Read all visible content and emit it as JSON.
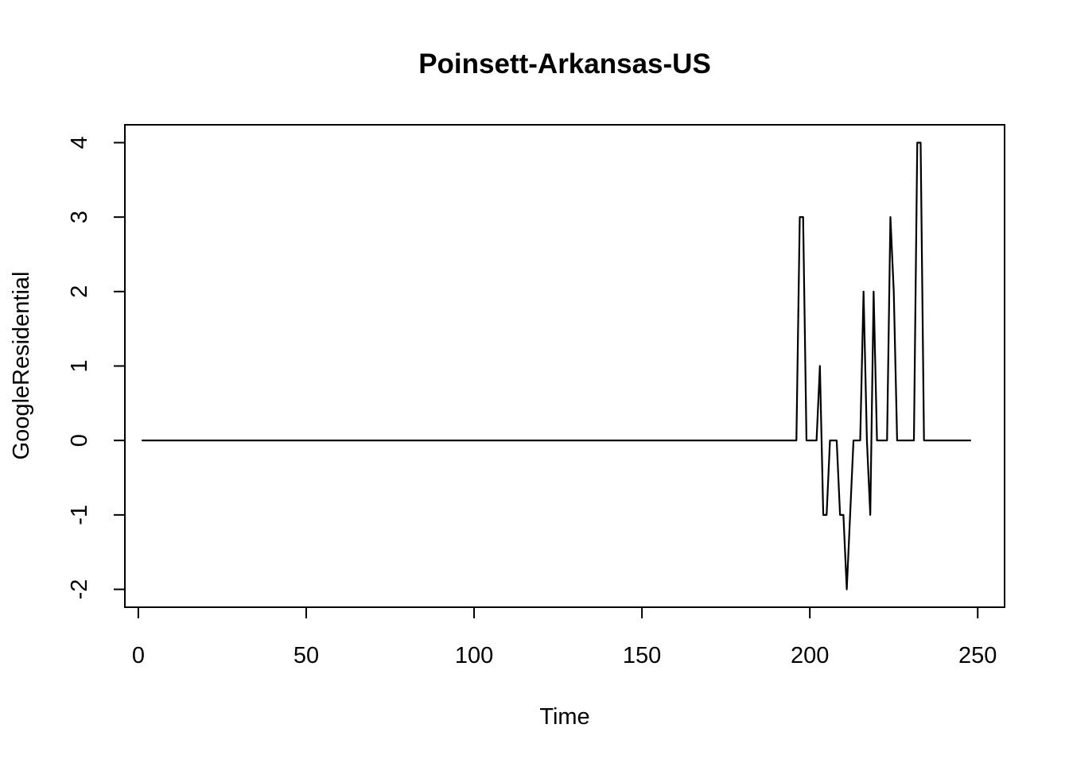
{
  "chart_data": {
    "type": "line",
    "title": "Poinsett-Arkansas-US",
    "xlabel": "Time",
    "ylabel": "GoogleResidential",
    "xlim": [
      -4,
      258
    ],
    "ylim": [
      -2.24,
      4.24
    ],
    "x_ticks": [
      0,
      50,
      100,
      150,
      200,
      250
    ],
    "y_ticks": [
      -2,
      -1,
      0,
      1,
      2,
      3,
      4
    ],
    "grid": false,
    "series": [
      {
        "x_start": 1,
        "x_end": 248,
        "baseline": 0,
        "points": [
          [
            196,
            0
          ],
          [
            197,
            3
          ],
          [
            198,
            3
          ],
          [
            199,
            0
          ],
          [
            200,
            0
          ],
          [
            201,
            0
          ],
          [
            202,
            0
          ],
          [
            203,
            1
          ],
          [
            204,
            -1
          ],
          [
            205,
            -1
          ],
          [
            206,
            0
          ],
          [
            207,
            0
          ],
          [
            208,
            0
          ],
          [
            209,
            -1
          ],
          [
            210,
            -1
          ],
          [
            211,
            -2
          ],
          [
            212,
            -1
          ],
          [
            213,
            0
          ],
          [
            214,
            0
          ],
          [
            215,
            0
          ],
          [
            216,
            2
          ],
          [
            217,
            0
          ],
          [
            218,
            -1
          ],
          [
            219,
            2
          ],
          [
            220,
            0
          ],
          [
            221,
            0
          ],
          [
            222,
            0
          ],
          [
            223,
            0
          ],
          [
            224,
            3
          ],
          [
            225,
            2
          ],
          [
            226,
            0
          ],
          [
            227,
            0
          ],
          [
            228,
            0
          ],
          [
            229,
            0
          ],
          [
            230,
            0
          ],
          [
            231,
            0
          ],
          [
            232,
            4
          ],
          [
            233,
            4
          ],
          [
            234,
            0
          ]
        ]
      }
    ]
  }
}
